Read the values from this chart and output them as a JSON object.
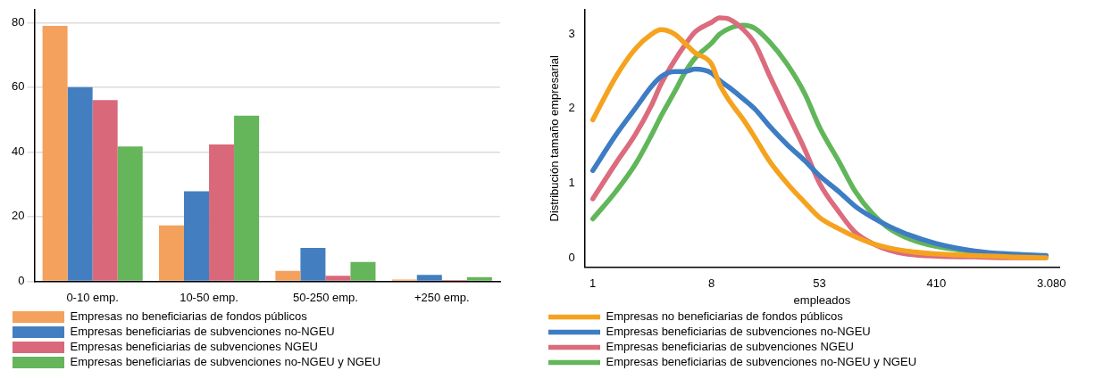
{
  "chart_data": [
    {
      "type": "bar",
      "categories": [
        "0-10 emp.",
        "10-50 emp.",
        "50-250 emp.",
        "+250 emp."
      ],
      "series": [
        {
          "name": "Empresas no beneficiarias de fondos públicos",
          "color": "#f4a15d",
          "values": [
            79,
            17.3,
            3.2,
            0.5
          ]
        },
        {
          "name": "Empresas beneficiarias de subvenciones no-NGEU",
          "color": "#437fc0",
          "values": [
            60,
            27.8,
            10.3,
            2.0
          ]
        },
        {
          "name": "Empresas beneficiarias de subvenciones NGEU",
          "color": "#d9697a",
          "values": [
            56,
            42.3,
            1.7,
            0.4
          ]
        },
        {
          "name": "Empresas beneficiarias de subvenciones no-NGEU y NGEU",
          "color": "#65b55a",
          "values": [
            41.7,
            51.2,
            6.0,
            1.3
          ]
        }
      ],
      "ylim": [
        0,
        84
      ],
      "yticks": [
        0,
        20,
        40,
        60,
        80
      ],
      "grid": "y",
      "legend": "bottom"
    },
    {
      "type": "line",
      "xlabel": "empleados",
      "ylabel": "Distribución tamaño empresarial",
      "log": "x",
      "marker": "none",
      "line_style": "solid",
      "legend": "bottom",
      "grid": false,
      "xlim": [
        0.87,
        3530
      ],
      "xticks": [
        1,
        8,
        53,
        410,
        {
          "value": 3080,
          "label": "3.080"
        }
      ],
      "ylim": [
        -0.13,
        3.33
      ],
      "yticks": [
        0,
        1,
        2,
        3
      ],
      "series": [
        {
          "name": "Empresas no beneficiarias de fondos públicos",
          "color": "#f5a31f",
          "x": [
            1,
            1.5,
            2.1,
            2.8,
            3.3,
            4.2,
            5,
            6,
            8,
            9.2,
            11,
            14,
            17,
            22,
            30,
            41,
            53,
            74,
            99,
            134,
            180,
            242,
            410,
            800,
            1450,
            2800
          ],
          "values": [
            1.85,
            2.43,
            2.8,
            3.0,
            3.06,
            3.0,
            2.88,
            2.75,
            2.6,
            2.33,
            2.1,
            1.85,
            1.62,
            1.3,
            1.0,
            0.74,
            0.54,
            0.39,
            0.28,
            0.19,
            0.13,
            0.09,
            0.05,
            0.03,
            0.01,
            0
          ]
        },
        {
          "name": "Empresas beneficiarias de subvenciones no-NGEU",
          "color": "#3e7cc4",
          "x": [
            1,
            1.5,
            2.1,
            2.8,
            3.3,
            4.2,
            5,
            6,
            8,
            9.2,
            11,
            14,
            17,
            22,
            30,
            41,
            53,
            74,
            99,
            134,
            180,
            242,
            410,
            800,
            1450,
            2800
          ],
          "values": [
            1.17,
            1.65,
            2.0,
            2.3,
            2.43,
            2.5,
            2.5,
            2.53,
            2.48,
            2.38,
            2.28,
            2.13,
            2.0,
            1.77,
            1.52,
            1.3,
            1.1,
            0.89,
            0.69,
            0.54,
            0.42,
            0.32,
            0.19,
            0.09,
            0.05,
            0.03
          ]
        },
        {
          "name": "Empresas beneficiarias de subvenciones NGEU",
          "color": "#dc6b7e",
          "x": [
            1,
            1.5,
            2.1,
            2.8,
            3.3,
            4.2,
            5,
            6,
            8,
            9.2,
            11,
            14,
            17,
            22,
            30,
            41,
            53,
            74,
            99,
            134,
            180,
            242,
            410,
            800,
            1450,
            2800
          ],
          "values": [
            0.79,
            1.27,
            1.65,
            2.05,
            2.33,
            2.65,
            2.85,
            3.03,
            3.16,
            3.22,
            3.2,
            3.06,
            2.88,
            2.45,
            1.95,
            1.45,
            1.0,
            0.62,
            0.34,
            0.19,
            0.1,
            0.05,
            0.02,
            0.01,
            0,
            0
          ]
        },
        {
          "name": "Empresas beneficiarias de subvenciones no-NGEU y NGEU",
          "color": "#62b65a",
          "x": [
            1,
            1.5,
            2.1,
            2.8,
            3.3,
            4.2,
            5,
            6,
            8,
            9.2,
            11,
            14,
            17,
            22,
            30,
            41,
            53,
            74,
            99,
            134,
            180,
            242,
            410,
            800,
            1450,
            2800
          ],
          "values": [
            0.52,
            0.89,
            1.25,
            1.65,
            1.9,
            2.23,
            2.48,
            2.68,
            2.88,
            3.0,
            3.08,
            3.12,
            3.08,
            2.9,
            2.6,
            2.2,
            1.75,
            1.3,
            0.89,
            0.59,
            0.39,
            0.27,
            0.15,
            0.08,
            0.04,
            0.02
          ]
        }
      ]
    }
  ]
}
